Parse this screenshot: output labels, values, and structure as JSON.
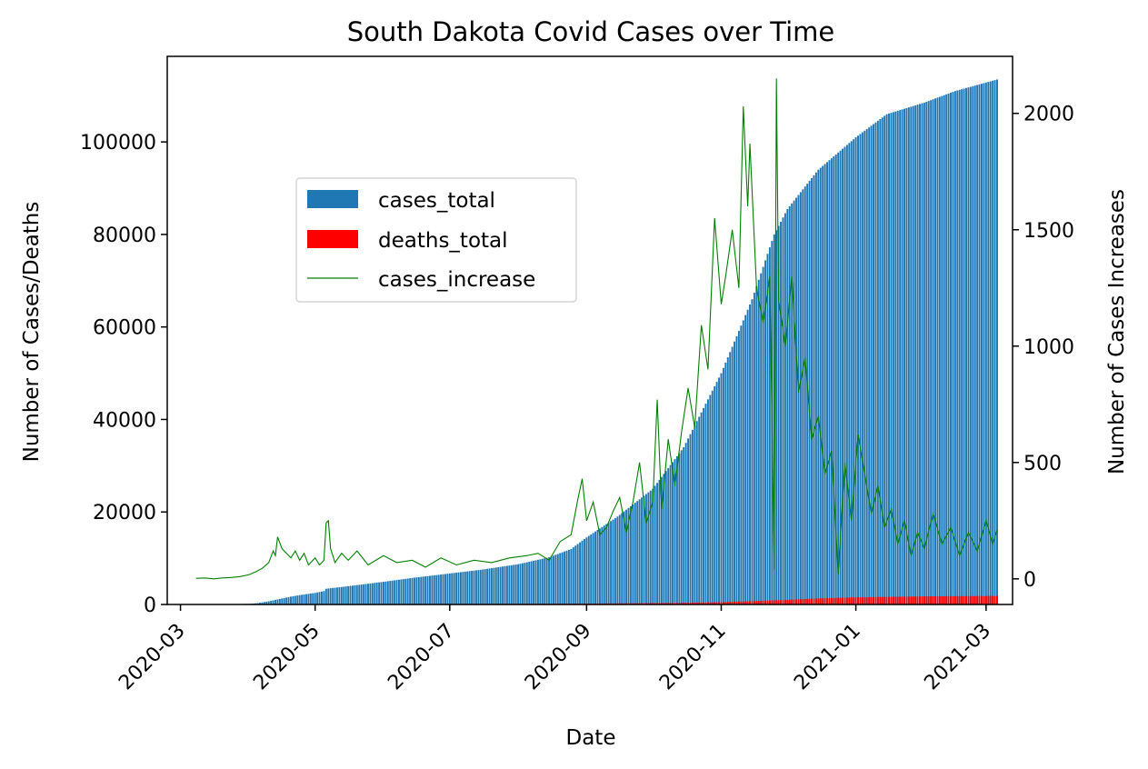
{
  "chart_data": {
    "type": "bar",
    "title": "South Dakota Covid Cases over Time",
    "xlabel": "Date",
    "ylabel_left": "Number of Cases/Deaths",
    "ylabel_right": "Number of Cases Increases",
    "x_range": [
      "2020-02-24",
      "2021-03-13"
    ],
    "ylim_left": [
      0,
      118500
    ],
    "ylim_right": [
      -110,
      2245
    ],
    "x_ticks": [
      "2020-03",
      "2020-05",
      "2020-07",
      "2020-09",
      "2020-11",
      "2021-01",
      "2021-03"
    ],
    "y_ticks_left": [
      0,
      20000,
      40000,
      60000,
      80000,
      100000
    ],
    "y_ticks_right": [
      0,
      500,
      1000,
      1500,
      2000
    ],
    "grid": false,
    "legend_position": "upper-left-center",
    "colors": {
      "cases_total": "#1f77b4",
      "deaths_total": "#ff0000",
      "cases_increase": "#008000"
    },
    "series": [
      {
        "name": "cases_total",
        "kind": "bar",
        "axis": "left",
        "points": [
          [
            "2020-03-08",
            0
          ],
          [
            "2020-04-01",
            130
          ],
          [
            "2020-04-05",
            300
          ],
          [
            "2020-04-10",
            700
          ],
          [
            "2020-04-15",
            1200
          ],
          [
            "2020-04-20",
            1700
          ],
          [
            "2020-04-25",
            2100
          ],
          [
            "2020-05-01",
            2500
          ],
          [
            "2020-05-05",
            2900
          ],
          [
            "2020-05-06",
            3400
          ],
          [
            "2020-05-15",
            3900
          ],
          [
            "2020-06-01",
            4900
          ],
          [
            "2020-06-15",
            5800
          ],
          [
            "2020-07-01",
            6700
          ],
          [
            "2020-07-15",
            7500
          ],
          [
            "2020-08-01",
            8700
          ],
          [
            "2020-08-15",
            10200
          ],
          [
            "2020-08-25",
            12000
          ],
          [
            "2020-09-01",
            14500
          ],
          [
            "2020-09-15",
            19000
          ],
          [
            "2020-10-01",
            25000
          ],
          [
            "2020-10-15",
            34000
          ],
          [
            "2020-11-01",
            50000
          ],
          [
            "2020-11-15",
            66000
          ],
          [
            "2020-11-25",
            80000
          ],
          [
            "2020-12-01",
            85500
          ],
          [
            "2020-12-15",
            94000
          ],
          [
            "2021-01-01",
            101000
          ],
          [
            "2021-01-15",
            106000
          ],
          [
            "2021-02-01",
            108500
          ],
          [
            "2021-02-15",
            111000
          ],
          [
            "2021-03-06",
            113500
          ]
        ]
      },
      {
        "name": "deaths_total",
        "kind": "bar",
        "axis": "left",
        "points": [
          [
            "2020-03-08",
            0
          ],
          [
            "2020-05-01",
            20
          ],
          [
            "2020-07-01",
            100
          ],
          [
            "2020-09-01",
            180
          ],
          [
            "2020-10-15",
            350
          ],
          [
            "2020-11-01",
            500
          ],
          [
            "2020-11-15",
            700
          ],
          [
            "2020-12-01",
            1000
          ],
          [
            "2020-12-15",
            1300
          ],
          [
            "2021-01-01",
            1550
          ],
          [
            "2021-02-01",
            1750
          ],
          [
            "2021-03-06",
            1850
          ]
        ]
      },
      {
        "name": "cases_increase",
        "kind": "line",
        "axis": "right",
        "points": [
          [
            "2020-03-08",
            2
          ],
          [
            "2020-03-12",
            4
          ],
          [
            "2020-03-16",
            0
          ],
          [
            "2020-03-20",
            4
          ],
          [
            "2020-03-24",
            6
          ],
          [
            "2020-03-28",
            10
          ],
          [
            "2020-04-01",
            18
          ],
          [
            "2020-04-04",
            30
          ],
          [
            "2020-04-07",
            45
          ],
          [
            "2020-04-10",
            70
          ],
          [
            "2020-04-12",
            120
          ],
          [
            "2020-04-13",
            100
          ],
          [
            "2020-04-14",
            180
          ],
          [
            "2020-04-16",
            130
          ],
          [
            "2020-04-18",
            110
          ],
          [
            "2020-04-20",
            90
          ],
          [
            "2020-04-22",
            120
          ],
          [
            "2020-04-24",
            80
          ],
          [
            "2020-04-26",
            110
          ],
          [
            "2020-04-28",
            60
          ],
          [
            "2020-05-01",
            90
          ],
          [
            "2020-05-03",
            60
          ],
          [
            "2020-05-05",
            80
          ],
          [
            "2020-05-06",
            240
          ],
          [
            "2020-05-07",
            250
          ],
          [
            "2020-05-08",
            130
          ],
          [
            "2020-05-10",
            70
          ],
          [
            "2020-05-13",
            110
          ],
          [
            "2020-05-16",
            80
          ],
          [
            "2020-05-20",
            120
          ],
          [
            "2020-05-25",
            60
          ],
          [
            "2020-06-01",
            100
          ],
          [
            "2020-06-07",
            70
          ],
          [
            "2020-06-14",
            80
          ],
          [
            "2020-06-20",
            50
          ],
          [
            "2020-06-27",
            90
          ],
          [
            "2020-07-04",
            60
          ],
          [
            "2020-07-12",
            80
          ],
          [
            "2020-07-20",
            70
          ],
          [
            "2020-07-28",
            90
          ],
          [
            "2020-08-05",
            100
          ],
          [
            "2020-08-10",
            110
          ],
          [
            "2020-08-15",
            80
          ],
          [
            "2020-08-20",
            160
          ],
          [
            "2020-08-25",
            190
          ],
          [
            "2020-08-28",
            340
          ],
          [
            "2020-08-30",
            430
          ],
          [
            "2020-09-01",
            250
          ],
          [
            "2020-09-04",
            330
          ],
          [
            "2020-09-07",
            190
          ],
          [
            "2020-09-10",
            220
          ],
          [
            "2020-09-13",
            290
          ],
          [
            "2020-09-16",
            350
          ],
          [
            "2020-09-19",
            200
          ],
          [
            "2020-09-22",
            330
          ],
          [
            "2020-09-25",
            500
          ],
          [
            "2020-09-28",
            240
          ],
          [
            "2020-10-01",
            330
          ],
          [
            "2020-10-03",
            770
          ],
          [
            "2020-10-05",
            300
          ],
          [
            "2020-10-08",
            600
          ],
          [
            "2020-10-11",
            400
          ],
          [
            "2020-10-14",
            630
          ],
          [
            "2020-10-17",
            820
          ],
          [
            "2020-10-20",
            650
          ],
          [
            "2020-10-23",
            1090
          ],
          [
            "2020-10-26",
            900
          ],
          [
            "2020-10-29",
            1550
          ],
          [
            "2020-11-01",
            1180
          ],
          [
            "2020-11-03",
            1300
          ],
          [
            "2020-11-06",
            1500
          ],
          [
            "2020-11-09",
            1250
          ],
          [
            "2020-11-11",
            2030
          ],
          [
            "2020-11-13",
            1600
          ],
          [
            "2020-11-14",
            1870
          ],
          [
            "2020-11-17",
            1250
          ],
          [
            "2020-11-20",
            1100
          ],
          [
            "2020-11-23",
            1300
          ],
          [
            "2020-11-25",
            40
          ],
          [
            "2020-11-26",
            2150
          ],
          [
            "2020-11-27",
            1200
          ],
          [
            "2020-11-30",
            1000
          ],
          [
            "2020-12-03",
            1300
          ],
          [
            "2020-12-06",
            800
          ],
          [
            "2020-12-09",
            950
          ],
          [
            "2020-12-12",
            600
          ],
          [
            "2020-12-15",
            700
          ],
          [
            "2020-12-18",
            450
          ],
          [
            "2020-12-21",
            550
          ],
          [
            "2020-12-24",
            20
          ],
          [
            "2020-12-27",
            500
          ],
          [
            "2020-12-30",
            250
          ],
          [
            "2021-01-02",
            620
          ],
          [
            "2021-01-05",
            450
          ],
          [
            "2021-01-08",
            280
          ],
          [
            "2021-01-11",
            400
          ],
          [
            "2021-01-14",
            220
          ],
          [
            "2021-01-17",
            300
          ],
          [
            "2021-01-20",
            150
          ],
          [
            "2021-01-23",
            250
          ],
          [
            "2021-01-26",
            100
          ],
          [
            "2021-01-29",
            200
          ],
          [
            "2021-02-01",
            130
          ],
          [
            "2021-02-05",
            280
          ],
          [
            "2021-02-09",
            150
          ],
          [
            "2021-02-13",
            220
          ],
          [
            "2021-02-17",
            100
          ],
          [
            "2021-02-21",
            200
          ],
          [
            "2021-02-25",
            120
          ],
          [
            "2021-03-01",
            250
          ],
          [
            "2021-03-04",
            150
          ],
          [
            "2021-03-06",
            210
          ]
        ]
      }
    ]
  }
}
